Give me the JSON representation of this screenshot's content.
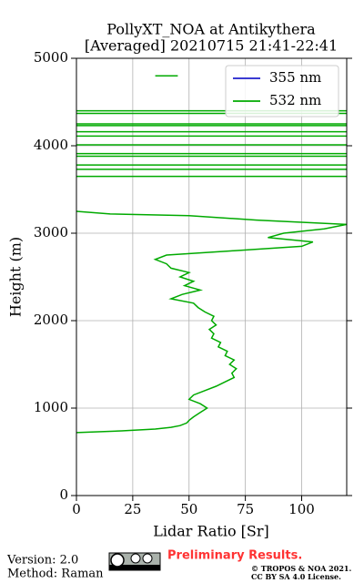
{
  "chart_data": {
    "type": "line",
    "orientation": "vertical-profile",
    "title": "PollyXT_NOA at Antikythera",
    "subtitle": "[Averaged] 20210715 21:41-22:41",
    "xlabel": "Lidar Ratio [Sr]",
    "ylabel": "Height (m)",
    "xlim": [
      0,
      120
    ],
    "xticks": [
      0,
      25,
      50,
      75,
      100
    ],
    "ylim": [
      0,
      5000
    ],
    "yticks": [
      0,
      1000,
      2000,
      3000,
      4000,
      5000
    ],
    "grid": true,
    "legend": "upper right",
    "y": [
      720,
      740,
      760,
      780,
      800,
      830,
      860,
      900,
      950,
      1000,
      1050,
      1100,
      1150,
      1200,
      1250,
      1300,
      1350,
      1400,
      1450,
      1500,
      1550,
      1600,
      1650,
      1700,
      1750,
      1800,
      1850,
      1900,
      1950,
      2000,
      2050,
      2100,
      2150,
      2200,
      2250,
      2300,
      2350,
      2400,
      2450,
      2500,
      2550,
      2600,
      2650,
      2700,
      2750,
      2800,
      2850,
      2900,
      2950,
      3000,
      3050,
      3100,
      3150,
      3200,
      3220,
      3250,
      3250,
      3650,
      3650,
      3650,
      3730,
      3730,
      3730,
      3780,
      3780,
      3780,
      3880,
      3880,
      3880,
      3910,
      3910,
      3910,
      4010,
      4010,
      4010,
      4110,
      4110,
      4110,
      4160,
      4160,
      4160,
      4230,
      4230,
      4230,
      4250,
      4250,
      4250,
      4370,
      4370,
      4370,
      4400,
      4400,
      4400,
      4800,
      4800
    ],
    "series": [
      {
        "name": "355 nm",
        "color": "#1f1fcc",
        "values": [
          null,
          null,
          null,
          null,
          null,
          null,
          null,
          null,
          null,
          null,
          null,
          null,
          null,
          null,
          null,
          null,
          null,
          null,
          null,
          null,
          null,
          null,
          null,
          null,
          null,
          null,
          null,
          null,
          null,
          null,
          null,
          null,
          null,
          null,
          null,
          null,
          null,
          null,
          null,
          null,
          null,
          null,
          null,
          null,
          null,
          null,
          null,
          null,
          null,
          null,
          null,
          null,
          null,
          null,
          null,
          null,
          null,
          null,
          null,
          null,
          null,
          null,
          null,
          null,
          null,
          null,
          null,
          null,
          null,
          null,
          null,
          null,
          null,
          null,
          null,
          null,
          null,
          null,
          null,
          null,
          null,
          null,
          null,
          null,
          null,
          null,
          null,
          null,
          null,
          null,
          null,
          null,
          null,
          null,
          null
        ]
      },
      {
        "name": "532 nm",
        "color": "#00aa00",
        "values": [
          0,
          20,
          35,
          42,
          46,
          49,
          50,
          52,
          55,
          58,
          55,
          50,
          52,
          57,
          62,
          66,
          70,
          69,
          71,
          68,
          70,
          66,
          67,
          63,
          64,
          60,
          61,
          59,
          62,
          60,
          61,
          57,
          54,
          52,
          42,
          47,
          55,
          48,
          52,
          46,
          50,
          42,
          40,
          35,
          40,
          70,
          100,
          105,
          85,
          92,
          110,
          120,
          80,
          50,
          15,
          0,
          null,
          0,
          120,
          null,
          0,
          120,
          null,
          0,
          120,
          null,
          0,
          120,
          null,
          0,
          120,
          null,
          0,
          120,
          null,
          0,
          120,
          null,
          0,
          120,
          null,
          0,
          120,
          null,
          0,
          120,
          null,
          0,
          120,
          null,
          0,
          120,
          null,
          35,
          45
        ]
      }
    ]
  },
  "footer": {
    "version": "Version: 2.0",
    "method": "Method: Raman",
    "status": "Preliminary Results.",
    "copyright": "© TROPOS & NOA 2021.",
    "license": "CC BY SA 4.0 License."
  }
}
